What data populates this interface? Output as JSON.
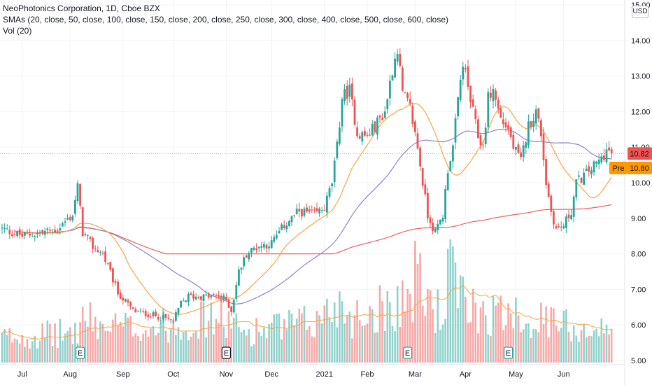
{
  "legend": {
    "symbol": "NeoPhotonics Corporation, 1D, Cboe BZX",
    "smas": "SMAs (20, close, 50, close, 100, close, 150, close, 200, close, 250, close, 300, close, 400, close, 500, close, 600, close)",
    "vol": "Vol (20)"
  },
  "currency": "USD",
  "colors": {
    "up": "#26a69a",
    "down": "#ef5350",
    "sma20": "#f7a541",
    "sma50": "#8e83c8",
    "sma200": "#ef5f5f",
    "price_line": "#f0b000",
    "last_label": "#ef5350",
    "pre_label": "#ff9800"
  },
  "chart_data": {
    "type": "candlestick",
    "ylim": [
      5.0,
      15.0
    ],
    "yticks": [
      "5.00",
      "6.00",
      "7.00",
      "8.00",
      "9.00",
      "10.00",
      "11.00",
      "12.00",
      "13.00",
      "14.00",
      "15.00"
    ],
    "xlabels": [
      {
        "label": "Jul",
        "i": 8
      },
      {
        "label": "Aug",
        "i": 27
      },
      {
        "label": "Sep",
        "i": 48
      },
      {
        "label": "Oct",
        "i": 68
      },
      {
        "label": "Nov",
        "i": 89
      },
      {
        "label": "Dec",
        "i": 107
      },
      {
        "label": "2021",
        "i": 128
      },
      {
        "label": "Feb",
        "i": 145
      },
      {
        "label": "Mar",
        "i": 164
      },
      {
        "label": "Apr",
        "i": 184
      },
      {
        "label": "May",
        "i": 204
      },
      {
        "label": "Jun",
        "i": 223
      }
    ],
    "earnings_markers": [
      31,
      89,
      161,
      201
    ],
    "last_price": {
      "label": "10.82",
      "value": 10.82
    },
    "pre_market": {
      "tag": "Pre",
      "label": "10.80",
      "value": 10.8
    },
    "anchors": [
      [
        0,
        8.7
      ],
      [
        8,
        8.5
      ],
      [
        16,
        8.6
      ],
      [
        22,
        8.7
      ],
      [
        28,
        9.1
      ],
      [
        30,
        9.9
      ],
      [
        32,
        8.6
      ],
      [
        36,
        8.2
      ],
      [
        40,
        8.0
      ],
      [
        46,
        6.9
      ],
      [
        52,
        6.4
      ],
      [
        58,
        6.3
      ],
      [
        64,
        6.2
      ],
      [
        68,
        6.1
      ],
      [
        71,
        6.6
      ],
      [
        74,
        6.8
      ],
      [
        80,
        6.8
      ],
      [
        86,
        6.8
      ],
      [
        89,
        6.7
      ],
      [
        91,
        6.4
      ],
      [
        94,
        7.5
      ],
      [
        97,
        8.0
      ],
      [
        101,
        8.2
      ],
      [
        107,
        8.3
      ],
      [
        112,
        8.8
      ],
      [
        118,
        9.2
      ],
      [
        124,
        9.1
      ],
      [
        128,
        9.3
      ],
      [
        131,
        10.0
      ],
      [
        133,
        11.0
      ],
      [
        135,
        12.4
      ],
      [
        138,
        12.6
      ],
      [
        141,
        11.4
      ],
      [
        145,
        11.3
      ],
      [
        148,
        11.6
      ],
      [
        152,
        12.0
      ],
      [
        155,
        13.2
      ],
      [
        157,
        13.8
      ],
      [
        159,
        12.5
      ],
      [
        162,
        12.1
      ],
      [
        165,
        11.0
      ],
      [
        167,
        10.0
      ],
      [
        169,
        9.1
      ],
      [
        172,
        8.6
      ],
      [
        175,
        9.1
      ],
      [
        177,
        10.4
      ],
      [
        179,
        11.0
      ],
      [
        181,
        12.3
      ],
      [
        183,
        13.4
      ],
      [
        186,
        12.3
      ],
      [
        189,
        11.3
      ],
      [
        191,
        11.0
      ],
      [
        193,
        12.4
      ],
      [
        195,
        12.6
      ],
      [
        198,
        11.8
      ],
      [
        201,
        11.5
      ],
      [
        203,
        11.0
      ],
      [
        206,
        10.6
      ],
      [
        209,
        11.6
      ],
      [
        212,
        12.0
      ],
      [
        214,
        11.4
      ],
      [
        216,
        10.0
      ],
      [
        218,
        9.2
      ],
      [
        220,
        8.7
      ],
      [
        223,
        8.8
      ],
      [
        226,
        9.2
      ],
      [
        228,
        10.0
      ],
      [
        231,
        10.2
      ],
      [
        234,
        10.4
      ],
      [
        237,
        10.6
      ],
      [
        240,
        10.9
      ],
      [
        242,
        10.82
      ]
    ],
    "volume_profile": [
      [
        0,
        0.25
      ],
      [
        30,
        0.3
      ],
      [
        31,
        0.45
      ],
      [
        40,
        0.35
      ],
      [
        60,
        0.35
      ],
      [
        88,
        0.45
      ],
      [
        95,
        0.3
      ],
      [
        125,
        0.4
      ],
      [
        133,
        0.6
      ],
      [
        140,
        0.45
      ],
      [
        155,
        0.6
      ],
      [
        162,
        0.65
      ],
      [
        165,
        0.9
      ],
      [
        167,
        0.7
      ],
      [
        175,
        0.45
      ],
      [
        178,
        1.0
      ],
      [
        182,
        0.6
      ],
      [
        200,
        0.45
      ],
      [
        202,
        0.8
      ],
      [
        205,
        0.45
      ],
      [
        242,
        0.3
      ]
    ]
  }
}
